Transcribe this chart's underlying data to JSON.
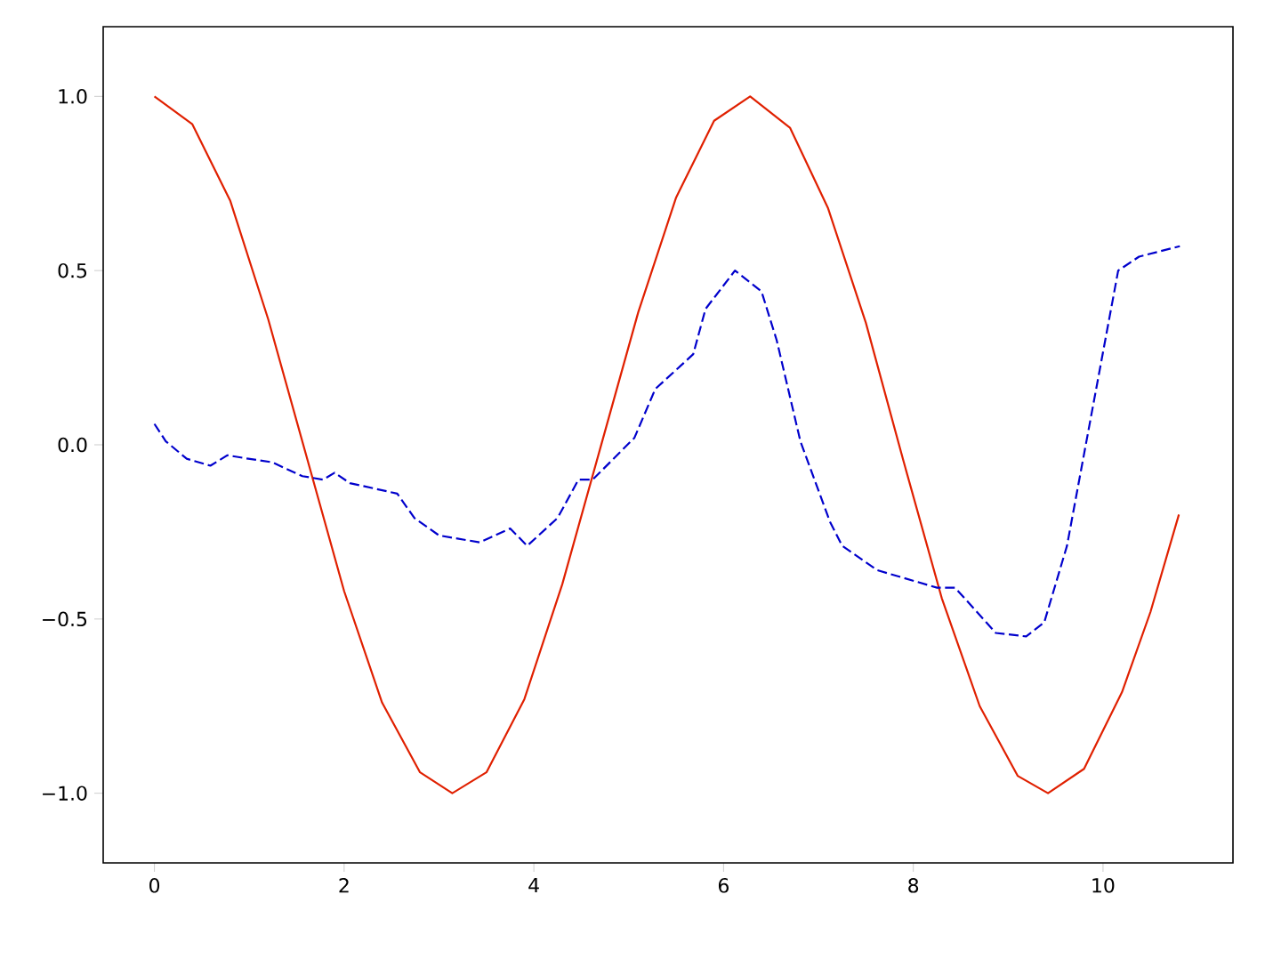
{
  "chart_data": {
    "type": "line",
    "xlim": [
      -0.54,
      11.37
    ],
    "ylim": [
      -1.2,
      1.2
    ],
    "xticks": [
      0,
      2,
      4,
      6,
      8,
      10
    ],
    "yticks": [
      {
        "value": -1.0,
        "label": "−1.0"
      },
      {
        "value": -0.5,
        "label": "−0.5"
      },
      {
        "value": 0.0,
        "label": "0.0"
      },
      {
        "value": 0.5,
        "label": "0.5"
      },
      {
        "value": 1.0,
        "label": "1.0"
      }
    ],
    "marker": "none",
    "series": [
      {
        "color": "#e02000",
        "line_style": "solid",
        "x": [
          0,
          0.4,
          0.8,
          1.2,
          1.6,
          2.0,
          2.4,
          2.8,
          3.14,
          3.5,
          3.9,
          4.3,
          4.7,
          5.1,
          5.5,
          5.9,
          6.28,
          6.7,
          7.1,
          7.5,
          7.9,
          8.3,
          8.7,
          9.1,
          9.42,
          9.8,
          10.2,
          10.5,
          10.8
        ],
        "values": [
          1.0,
          0.92,
          0.7,
          0.36,
          -0.03,
          -0.42,
          -0.74,
          -0.94,
          -1.0,
          -0.94,
          -0.73,
          -0.4,
          -0.01,
          0.38,
          0.71,
          0.93,
          1.0,
          0.91,
          0.68,
          0.35,
          -0.05,
          -0.44,
          -0.75,
          -0.95,
          -1.0,
          -0.93,
          -0.71,
          -0.48,
          -0.2
        ]
      },
      {
        "color": "#0000cc",
        "line_style": "dashed",
        "x": [
          0,
          0.12,
          0.34,
          0.59,
          0.77,
          0.99,
          1.24,
          1.56,
          1.78,
          1.9,
          2.06,
          2.56,
          2.74,
          3.0,
          3.43,
          3.75,
          3.93,
          4.25,
          4.47,
          4.62,
          5.06,
          5.28,
          5.68,
          5.81,
          6.12,
          6.4,
          6.56,
          6.81,
          7.12,
          7.25,
          7.62,
          8.25,
          8.44,
          8.87,
          9.19,
          9.38,
          9.62,
          10.16,
          10.38,
          10.81
        ],
        "values": [
          0.06,
          0.01,
          -0.04,
          -0.06,
          -0.03,
          -0.04,
          -0.05,
          -0.09,
          -0.1,
          -0.08,
          -0.11,
          -0.14,
          -0.21,
          -0.26,
          -0.28,
          -0.24,
          -0.29,
          -0.21,
          -0.1,
          -0.1,
          0.02,
          0.16,
          0.26,
          0.39,
          0.5,
          0.44,
          0.3,
          0.01,
          -0.22,
          -0.29,
          -0.36,
          -0.41,
          -0.41,
          -0.54,
          -0.55,
          -0.51,
          -0.29,
          0.5,
          0.54,
          0.57
        ]
      }
    ]
  }
}
